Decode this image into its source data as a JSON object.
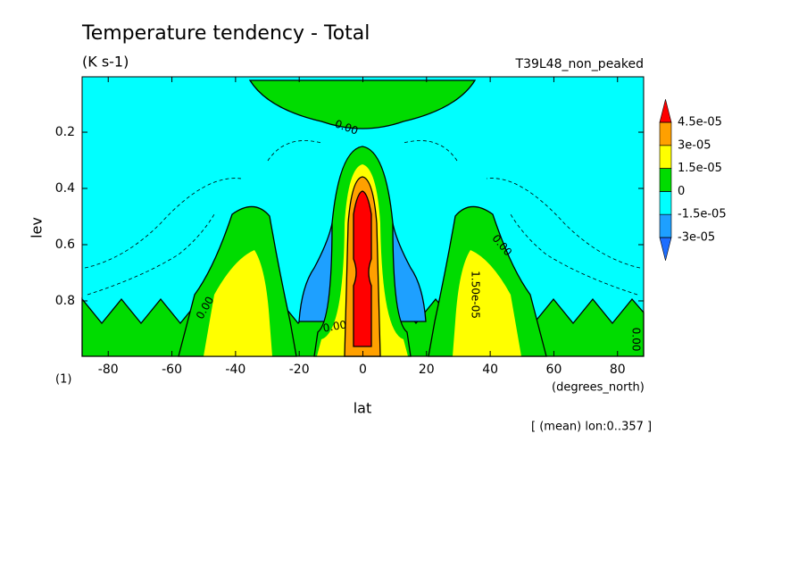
{
  "chart_data": {
    "type": "contour",
    "title": "Temperature tendency - Total",
    "subtitle": "(K s-1)",
    "run_label": "T39L48_non_peaked",
    "x_label": "lat",
    "x_units": "(degrees_north)",
    "y_label": "lev",
    "y_units": "(1)",
    "footnote": "[ (mean) lon:0..357 ]",
    "xlim": [
      -88.2,
      88.2
    ],
    "xticks": [
      -80,
      -60,
      -40,
      -20,
      0,
      20,
      40,
      60,
      80
    ],
    "ylim": [
      0.997,
      0.003
    ],
    "yticks": [
      0.2,
      0.4,
      0.6,
      0.8
    ],
    "levels": [
      {
        "value": -3e-05,
        "label": "-3e-05"
      },
      {
        "value": -1.5e-05,
        "label": "-1.5e-05"
      },
      0,
      {
        "value": 1.5e-05,
        "label": "1.5e-05"
      },
      {
        "value": 3e-05,
        "label": "3e-05"
      },
      {
        "value": 4.5e-05,
        "label": "4.5e-05"
      }
    ],
    "colors": [
      "#1e6eff",
      "#1ea0ff",
      "#00ffff",
      "#00dc00",
      "#ffff00",
      "#ffa000",
      "#ff0000"
    ],
    "contour_labels": [
      {
        "value": 0,
        "label": "0.00"
      },
      {
        "value": 0,
        "label": "0.00"
      },
      {
        "value": 1.5e-05,
        "label": "1.50e-05"
      },
      {
        "value": 0,
        "label": "0.00"
      },
      {
        "value": 0,
        "label": "0.00"
      },
      {
        "value": 0,
        "label": "0.00"
      }
    ]
  }
}
